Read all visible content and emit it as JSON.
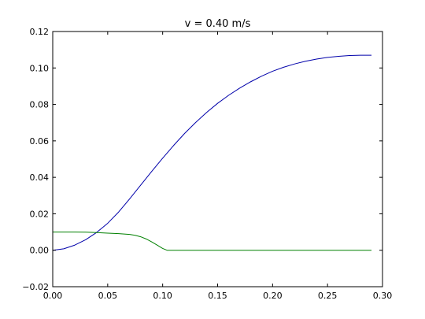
{
  "chart_data": {
    "type": "line",
    "title": "v = 0.40 m/s",
    "xlabel": "",
    "ylabel": "",
    "xlim": [
      0.0,
      0.3
    ],
    "ylim": [
      -0.02,
      0.12
    ],
    "grid": false,
    "x_ticks": [
      "0.00",
      "0.05",
      "0.10",
      "0.15",
      "0.20",
      "0.25",
      "0.30"
    ],
    "y_ticks": [
      "−0.02",
      "0.00",
      "0.02",
      "0.04",
      "0.06",
      "0.08",
      "0.10",
      "0.12"
    ],
    "series": [
      {
        "color": "#0000aa",
        "x": [
          0.0,
          0.01,
          0.02,
          0.03,
          0.04,
          0.05,
          0.06,
          0.07,
          0.08,
          0.09,
          0.1,
          0.11,
          0.12,
          0.13,
          0.14,
          0.15,
          0.16,
          0.17,
          0.18,
          0.19,
          0.2,
          0.21,
          0.22,
          0.23,
          0.24,
          0.25,
          0.26,
          0.27,
          0.28,
          0.29
        ],
        "y": [
          0.0,
          0.0008,
          0.0028,
          0.0058,
          0.0098,
          0.0148,
          0.021,
          0.0282,
          0.0357,
          0.0432,
          0.0505,
          0.0575,
          0.0641,
          0.0701,
          0.0756,
          0.0806,
          0.085,
          0.0889,
          0.0924,
          0.0955,
          0.0982,
          0.1004,
          0.1022,
          0.1037,
          0.1049,
          0.1058,
          0.1064,
          0.1068,
          0.107,
          0.107
        ]
      },
      {
        "color": "#008000",
        "x": [
          0.0,
          0.01,
          0.02,
          0.03,
          0.04,
          0.05,
          0.06,
          0.07,
          0.075,
          0.08,
          0.085,
          0.09,
          0.095,
          0.1,
          0.104,
          0.12,
          0.15,
          0.2,
          0.25,
          0.29
        ],
        "y": [
          0.01,
          0.01,
          0.01,
          0.0099,
          0.0097,
          0.0094,
          0.0091,
          0.0087,
          0.0082,
          0.0074,
          0.0062,
          0.0046,
          0.0028,
          0.001,
          0.0,
          0.0,
          0.0,
          0.0,
          0.0,
          0.0
        ]
      }
    ]
  }
}
